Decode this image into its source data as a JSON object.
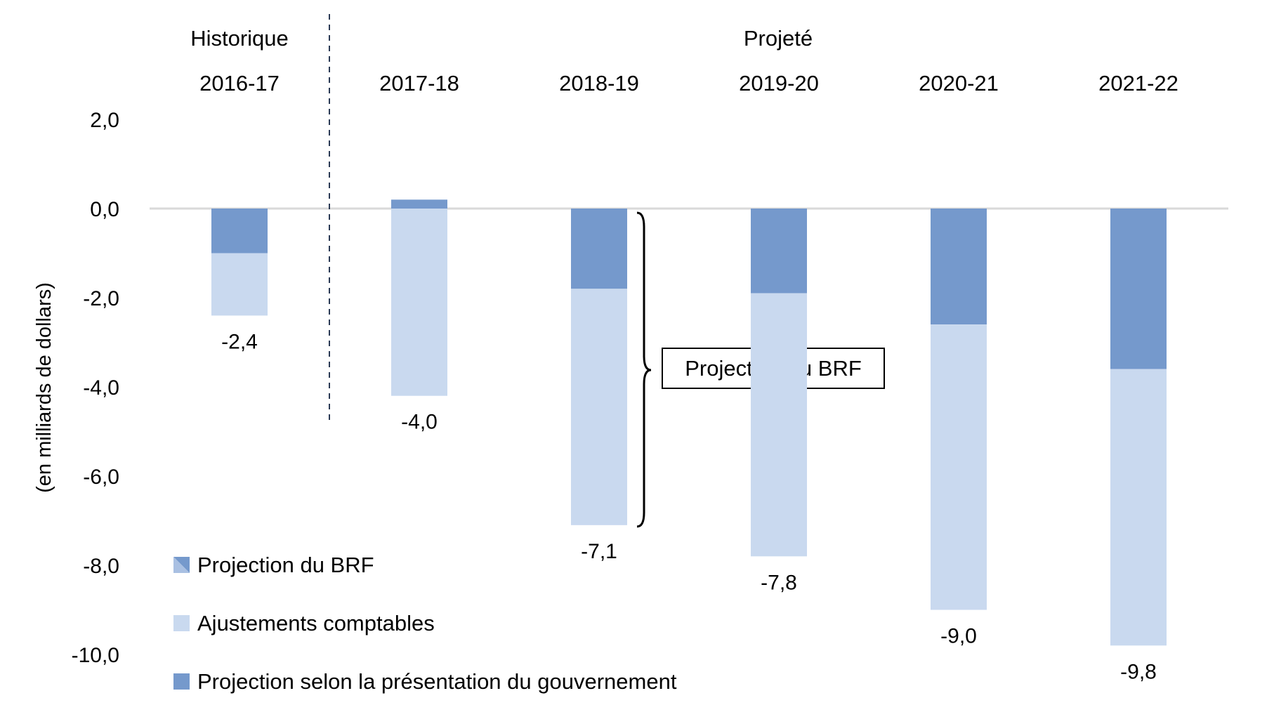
{
  "chart_data": {
    "type": "bar",
    "stacked": true,
    "title": "",
    "xlabel": "",
    "ylabel": "(en milliards de dollars)",
    "ylim": [
      -10.0,
      2.0
    ],
    "yticks": [
      2.0,
      0.0,
      -2.0,
      -4.0,
      -6.0,
      -8.0,
      -10.0
    ],
    "ytick_labels": [
      "2,0",
      "0,0",
      "-2,0",
      "-4,0",
      "-6,0",
      "-8,0",
      "-10,0"
    ],
    "grid": false,
    "legend_position": "bottom-left",
    "categories": [
      "2016-17",
      "2017-18",
      "2018-19",
      "2019-20",
      "2020-21",
      "2021-22"
    ],
    "period_groups": [
      {
        "label": "Historique",
        "categories": [
          "2016-17"
        ]
      },
      {
        "label": "Projeté",
        "categories": [
          "2017-18",
          "2018-19",
          "2019-20",
          "2020-21",
          "2021-22"
        ]
      }
    ],
    "series": [
      {
        "name": "Projection selon la présentation du gouvernement",
        "color": "#7599cc",
        "values": [
          -1.0,
          0.2,
          -1.8,
          -1.9,
          -2.6,
          -3.6
        ]
      },
      {
        "name": "Ajustements comptables",
        "color": "#c9d9ef",
        "values": [
          -1.4,
          -4.2,
          -5.3,
          -5.9,
          -6.4,
          -6.2
        ]
      }
    ],
    "totals": [
      -2.4,
      -4.0,
      -7.1,
      -7.8,
      -9.0,
      -9.8
    ],
    "total_labels": [
      "-2,4",
      "-4,0",
      "-7,1",
      "-7,8",
      "-9,0",
      "-9,8"
    ],
    "legend": [
      {
        "label": "Projection du BRF",
        "swatch": "split",
        "colors": [
          "#7599cc",
          "#a9c0e2"
        ]
      },
      {
        "label": "Ajustements comptables",
        "swatch": "solid",
        "colors": [
          "#c9d9ef"
        ]
      },
      {
        "label": "Projection selon la présentation du gouvernement",
        "swatch": "solid",
        "colors": [
          "#7599cc"
        ]
      }
    ],
    "annotations": [
      {
        "type": "brace",
        "category": "2018-19",
        "label": "Projection du BRF",
        "from": 0.0,
        "to": -7.1
      }
    ],
    "divider": {
      "between": [
        "2016-17",
        "2017-18"
      ],
      "style": "dashed",
      "color": "#2b3a55"
    }
  }
}
